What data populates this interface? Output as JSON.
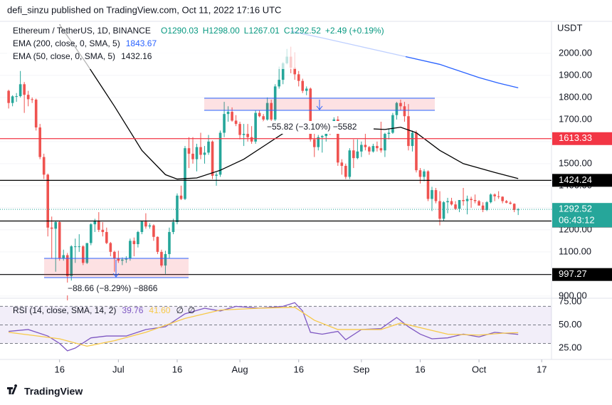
{
  "chart_data": {
    "type": "candlestick",
    "attribution": "defi_sinzu published on TradingView.com, Oct 11, 2022 17:16 UTC",
    "title": "Ethereum / TetherUS, 1D, BINANCE",
    "ohlc_text": [
      "O1290.03",
      "H1298.00",
      "L1267.01",
      "C1292.52",
      "+2.49 (+0.19%)"
    ],
    "currency": "USDT",
    "up_color": "#26a69a",
    "down_color": "#ef5350",
    "candles": [
      [
        1830,
        1835,
        1750,
        1775
      ],
      [
        1775,
        1810,
        1760,
        1805
      ],
      [
        1805,
        1820,
        1780,
        1806
      ],
      [
        1806,
        1920,
        1800,
        1860
      ],
      [
        1860,
        1870,
        1730,
        1812
      ],
      [
        1812,
        1830,
        1760,
        1792
      ],
      [
        1792,
        1800,
        1775,
        1790
      ],
      [
        1790,
        1795,
        1650,
        1664
      ],
      [
        1664,
        1680,
        1520,
        1530
      ],
      [
        1530,
        1545,
        1430,
        1450
      ],
      [
        1450,
        1455,
        1170,
        1210
      ],
      [
        1210,
        1260,
        1070,
        1205
      ],
      [
        1205,
        1240,
        1010,
        1235
      ],
      [
        1235,
        1240,
        1060,
        1070
      ],
      [
        1070,
        1110,
        1060,
        1085
      ],
      [
        1085,
        1095,
        880,
        990
      ],
      [
        990,
        1130,
        970,
        1125
      ],
      [
        1125,
        1160,
        1050,
        1125
      ],
      [
        1125,
        1180,
        1100,
        1125
      ],
      [
        1125,
        1130,
        1040,
        1050
      ],
      [
        1050,
        1140,
        1045,
        1140
      ],
      [
        1140,
        1230,
        1130,
        1225
      ],
      [
        1225,
        1250,
        1190,
        1240
      ],
      [
        1240,
        1280,
        1190,
        1200
      ],
      [
        1200,
        1235,
        1170,
        1190
      ],
      [
        1190,
        1210,
        1135,
        1140
      ],
      [
        1140,
        1145,
        1080,
        1100
      ],
      [
        1100,
        1105,
        1010,
        1070
      ],
      [
        1070,
        1105,
        1050,
        1060
      ],
      [
        1060,
        1075,
        1040,
        1065
      ],
      [
        1065,
        1080,
        1050,
        1070
      ],
      [
        1070,
        1160,
        1060,
        1150
      ],
      [
        1150,
        1165,
        1080,
        1135
      ],
      [
        1135,
        1195,
        1120,
        1190
      ],
      [
        1190,
        1240,
        1180,
        1237
      ],
      [
        1237,
        1275,
        1205,
        1215
      ],
      [
        1215,
        1230,
        1205,
        1220
      ],
      [
        1220,
        1225,
        1150,
        1168
      ],
      [
        1168,
        1170,
        1090,
        1100
      ],
      [
        1100,
        1110,
        1030,
        1038
      ],
      [
        1038,
        1105,
        1000,
        1090
      ],
      [
        1090,
        1210,
        1070,
        1190
      ],
      [
        1190,
        1250,
        1180,
        1235
      ],
      [
        1235,
        1365,
        1225,
        1355
      ],
      [
        1355,
        1400,
        1335,
        1340
      ],
      [
        1340,
        1580,
        1335,
        1570
      ],
      [
        1570,
        1620,
        1480,
        1545
      ],
      [
        1545,
        1620,
        1500,
        1520
      ],
      [
        1520,
        1590,
        1465,
        1575
      ],
      [
        1575,
        1640,
        1520,
        1540
      ],
      [
        1540,
        1580,
        1500,
        1550
      ],
      [
        1550,
        1630,
        1540,
        1600
      ],
      [
        1600,
        1605,
        1430,
        1445
      ],
      [
        1445,
        1460,
        1400,
        1450
      ],
      [
        1450,
        1650,
        1440,
        1640
      ],
      [
        1640,
        1780,
        1620,
        1725
      ],
      [
        1725,
        1760,
        1690,
        1735
      ],
      [
        1735,
        1755,
        1690,
        1695
      ],
      [
        1695,
        1720,
        1670,
        1680
      ],
      [
        1680,
        1690,
        1610,
        1630
      ],
      [
        1630,
        1680,
        1580,
        1635
      ],
      [
        1635,
        1680,
        1600,
        1620
      ],
      [
        1620,
        1670,
        1590,
        1600
      ],
      [
        1600,
        1740,
        1590,
        1730
      ],
      [
        1730,
        1740,
        1710,
        1715
      ],
      [
        1715,
        1725,
        1690,
        1700
      ],
      [
        1700,
        1800,
        1695,
        1775
      ],
      [
        1775,
        1790,
        1690,
        1700
      ],
      [
        1700,
        1860,
        1690,
        1850
      ],
      [
        1850,
        1940,
        1840,
        1880
      ],
      [
        1880,
        1960,
        1860,
        1955
      ],
      [
        1955,
        2020,
        1950,
        1985
      ],
      [
        1985,
        2030,
        1910,
        1935
      ],
      [
        1935,
        2005,
        1880,
        1905
      ],
      [
        1905,
        1920,
        1850,
        1875
      ],
      [
        1875,
        1885,
        1820,
        1830
      ],
      [
        1830,
        1850,
        1810,
        1840
      ],
      [
        1840,
        1845,
        1600,
        1610
      ],
      [
        1610,
        1640,
        1530,
        1575
      ],
      [
        1575,
        1630,
        1560,
        1620
      ],
      [
        1620,
        1630,
        1550,
        1625
      ],
      [
        1625,
        1670,
        1600,
        1660
      ],
      [
        1660,
        1680,
        1630,
        1655
      ],
      [
        1655,
        1710,
        1650,
        1700
      ],
      [
        1700,
        1715,
        1490,
        1505
      ],
      [
        1505,
        1520,
        1450,
        1490
      ],
      [
        1490,
        1500,
        1430,
        1440
      ],
      [
        1440,
        1570,
        1430,
        1560
      ],
      [
        1560,
        1610,
        1480,
        1525
      ],
      [
        1525,
        1610,
        1520,
        1555
      ],
      [
        1555,
        1600,
        1530,
        1585
      ],
      [
        1585,
        1650,
        1560,
        1575
      ],
      [
        1575,
        1580,
        1540,
        1555
      ],
      [
        1555,
        1590,
        1550,
        1580
      ],
      [
        1580,
        1600,
        1555,
        1570
      ],
      [
        1570,
        1690,
        1550,
        1560
      ],
      [
        1560,
        1640,
        1530,
        1635
      ],
      [
        1635,
        1660,
        1610,
        1640
      ],
      [
        1640,
        1730,
        1635,
        1720
      ],
      [
        1720,
        1780,
        1700,
        1775
      ],
      [
        1775,
        1790,
        1740,
        1760
      ],
      [
        1760,
        1780,
        1690,
        1715
      ],
      [
        1715,
        1770,
        1560,
        1580
      ],
      [
        1580,
        1650,
        1555,
        1640
      ],
      [
        1640,
        1650,
        1460,
        1470
      ],
      [
        1470,
        1480,
        1410,
        1440
      ],
      [
        1440,
        1475,
        1420,
        1465
      ],
      [
        1465,
        1470,
        1330,
        1340
      ],
      [
        1340,
        1395,
        1285,
        1380
      ],
      [
        1380,
        1390,
        1320,
        1330
      ],
      [
        1330,
        1375,
        1220,
        1250
      ],
      [
        1250,
        1330,
        1240,
        1325
      ],
      [
        1325,
        1345,
        1275,
        1330
      ],
      [
        1330,
        1345,
        1310,
        1315
      ],
      [
        1315,
        1330,
        1290,
        1295
      ],
      [
        1295,
        1335,
        1280,
        1335
      ],
      [
        1335,
        1390,
        1310,
        1330
      ],
      [
        1330,
        1355,
        1270,
        1340
      ],
      [
        1340,
        1350,
        1300,
        1335
      ],
      [
        1335,
        1360,
        1320,
        1330
      ],
      [
        1330,
        1335,
        1310,
        1310
      ],
      [
        1310,
        1325,
        1280,
        1290
      ],
      [
        1290,
        1330,
        1285,
        1325
      ],
      [
        1325,
        1365,
        1320,
        1360
      ],
      [
        1360,
        1365,
        1330,
        1352
      ],
      [
        1352,
        1375,
        1340,
        1350
      ],
      [
        1350,
        1352,
        1320,
        1330
      ],
      [
        1330,
        1335,
        1320,
        1323
      ],
      [
        1323,
        1330,
        1315,
        1318
      ],
      [
        1318,
        1320,
        1280,
        1290
      ],
      [
        1290.03,
        1298,
        1267.01,
        1292.52
      ]
    ],
    "ema": [
      {
        "name": "EMA (200, close, 0, SMA, 5)",
        "color": "#2962ff",
        "x": [
          72,
          80,
          90,
          100,
          110,
          120,
          125,
          130
        ],
        "values": [
          2100,
          2070,
          2030,
          1990,
          1950,
          1890,
          1865,
          1843.67
        ]
      },
      {
        "name": "EMA (50, close, 0, SMA, 5)",
        "color": "#000000",
        "x": [
          13,
          20,
          27,
          34,
          40,
          43,
          48,
          54,
          60,
          66,
          72,
          76,
          82,
          90,
          96,
          100,
          104,
          110,
          116,
          124,
          130
        ],
        "values": [
          2130,
          1950,
          1760,
          1560,
          1450,
          1430,
          1435,
          1470,
          1520,
          1590,
          1660,
          1690,
          1680,
          1660,
          1655,
          1665,
          1640,
          1560,
          1500,
          1460,
          1432.16
        ]
      }
    ],
    "xlim": [
      -2.2,
      138.5
    ],
    "ylim": [
      893,
      2145
    ],
    "yticks": [
      {
        "value": 900,
        "label": "900.00"
      },
      {
        "value": 1000,
        "label": "1000.00"
      },
      {
        "value": 1100,
        "label": "1100.00"
      },
      {
        "value": 1200,
        "label": "1200.00"
      },
      {
        "value": 1300,
        "label": "1300.00"
      },
      {
        "value": 1400,
        "label": "1400.00"
      },
      {
        "value": 1500,
        "label": "1500.00"
      },
      {
        "value": 1600,
        "label": "1600.00"
      },
      {
        "value": 1700,
        "label": "1700.00"
      },
      {
        "value": 1800,
        "label": "1800.00"
      },
      {
        "value": 1900,
        "label": "1900.00"
      },
      {
        "value": 2000,
        "label": "2000.00"
      }
    ],
    "xticks": [
      {
        "value": 13,
        "label": "16"
      },
      {
        "value": 28,
        "label": "Jul"
      },
      {
        "value": 43,
        "label": "16"
      },
      {
        "value": 59,
        "label": "Aug"
      },
      {
        "value": 74,
        "label": "16"
      },
      {
        "value": 90,
        "label": "Sep"
      },
      {
        "value": 105,
        "label": "16"
      },
      {
        "value": 120,
        "label": "Oct"
      },
      {
        "value": 136,
        "label": "17"
      }
    ],
    "levels": [
      {
        "value": 1613.33,
        "color": "#f23645"
      },
      {
        "value": 1424.24,
        "color": "#000000"
      },
      {
        "value": 1239.98,
        "color": "#000000"
      },
      {
        "value": 997.27,
        "color": "#000000"
      }
    ],
    "countdown": "06:43:12",
    "measures": [
      "−55.82 (−3.10%) −5582",
      "−88.66 (−8.29%) −8866"
    ],
    "rsi": {
      "name": "RSI (14, close, SMA, 14, 2)",
      "extra": [
        "∅",
        "∅"
      ],
      "ylim": [
        12.7,
        78
      ],
      "yticks": [
        {
          "value": 25,
          "label": "25.00"
        },
        {
          "value": 50,
          "label": "50.00"
        },
        {
          "value": 75,
          "label": "75.00"
        }
      ],
      "bands": [
        30,
        50,
        70
      ],
      "series": [
        {
          "color": "#7e57c2",
          "x": [
            0,
            5,
            10,
            13,
            15,
            17,
            21,
            25,
            30,
            35,
            40,
            45,
            50,
            54,
            58,
            64,
            70,
            73,
            75,
            77,
            80,
            84,
            86,
            90,
            95,
            99,
            102,
            105,
            108,
            112,
            116,
            120,
            124,
            130
          ],
          "values": [
            43,
            45,
            38,
            30,
            22,
            25,
            36,
            38,
            38,
            45,
            48,
            62,
            68,
            65,
            70,
            68,
            70,
            74,
            65,
            42,
            40,
            43,
            34,
            45,
            46,
            58,
            48,
            40,
            35,
            36,
            40,
            37,
            42,
            39.76
          ]
        },
        {
          "color": "#f7c948",
          "x": [
            0,
            13,
            20,
            27,
            35,
            45,
            54,
            64,
            73,
            78,
            84,
            95,
            100,
            106,
            112,
            120,
            126,
            130
          ],
          "values": [
            42,
            35,
            27,
            33,
            42,
            57,
            66,
            68,
            69,
            55,
            45,
            45,
            52,
            46,
            40,
            39,
            41,
            41.6
          ],
          "value_labels": [
            null,
            null,
            null,
            null,
            null,
            null,
            null,
            null,
            null,
            null,
            null,
            null,
            null,
            null,
            null,
            null,
            null,
            "41.60"
          ]
        }
      ]
    },
    "footer": "TradingView"
  }
}
